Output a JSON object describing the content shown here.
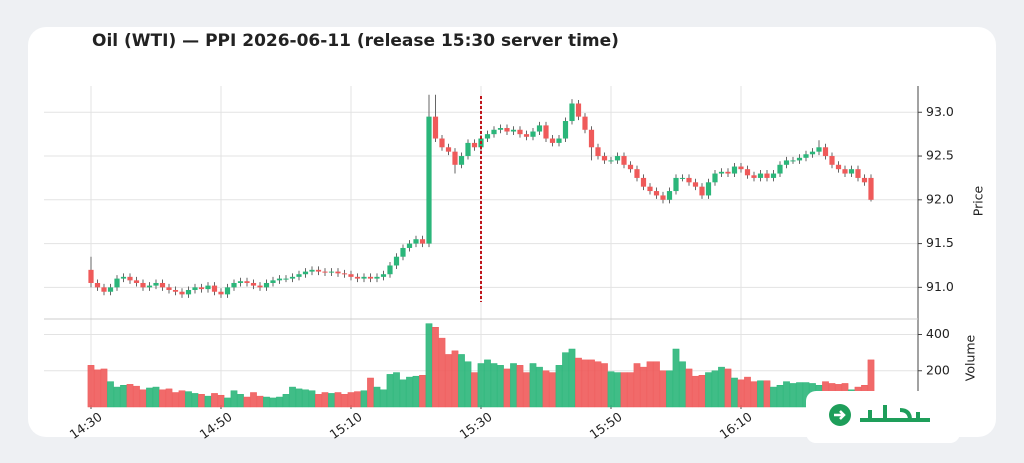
{
  "chart_data": {
    "type": "candlestick",
    "title": "Oil (WTI) — PPI 2026-06-11 (release 15:30 server time)",
    "x": [
      "14:30",
      "14:31",
      "14:32",
      "14:33",
      "14:34",
      "14:35",
      "14:36",
      "14:37",
      "14:38",
      "14:39",
      "14:40",
      "14:41",
      "14:42",
      "14:43",
      "14:44",
      "14:45",
      "14:46",
      "14:47",
      "14:48",
      "14:49",
      "14:50",
      "14:51",
      "14:52",
      "14:53",
      "14:54",
      "14:55",
      "14:56",
      "14:57",
      "14:58",
      "14:59",
      "15:00",
      "15:01",
      "15:02",
      "15:03",
      "15:04",
      "15:05",
      "15:06",
      "15:07",
      "15:08",
      "15:09",
      "15:10",
      "15:11",
      "15:12",
      "15:13",
      "15:14",
      "15:15",
      "15:16",
      "15:17",
      "15:18",
      "15:19",
      "15:20",
      "15:21",
      "15:22",
      "15:23",
      "15:24",
      "15:25",
      "15:26",
      "15:27",
      "15:28",
      "15:29",
      "15:30",
      "15:31",
      "15:32",
      "15:33",
      "15:34",
      "15:35",
      "15:36",
      "15:37",
      "15:38",
      "15:39",
      "15:40",
      "15:41",
      "15:42",
      "15:43",
      "15:44",
      "15:45",
      "15:46",
      "15:47",
      "15:48",
      "15:49",
      "15:50",
      "15:51",
      "15:52",
      "15:53",
      "15:54",
      "15:55",
      "15:56",
      "15:57",
      "15:58",
      "15:59",
      "16:00",
      "16:01",
      "16:02",
      "16:03",
      "16:04",
      "16:05",
      "16:06",
      "16:07",
      "16:08",
      "16:09",
      "16:10",
      "16:11",
      "16:12",
      "16:13",
      "16:14",
      "16:15",
      "16:16",
      "16:17",
      "16:18",
      "16:19",
      "16:20",
      "16:21",
      "16:22",
      "16:23",
      "16:24",
      "16:25",
      "16:26",
      "16:27",
      "16:28",
      "16:29",
      "16:30"
    ],
    "open": [
      91.2,
      91.05,
      91.0,
      90.95,
      91.0,
      91.1,
      91.12,
      91.08,
      91.05,
      91.0,
      91.02,
      91.05,
      91.0,
      90.97,
      90.95,
      90.92,
      90.97,
      91.0,
      90.98,
      91.02,
      90.95,
      90.92,
      91.0,
      91.05,
      91.07,
      91.05,
      91.02,
      91.0,
      91.05,
      91.08,
      91.1,
      91.1,
      91.12,
      91.15,
      91.18,
      91.2,
      91.18,
      91.17,
      91.18,
      91.16,
      91.15,
      91.12,
      91.1,
      91.12,
      91.1,
      91.12,
      91.15,
      91.25,
      91.35,
      91.45,
      91.5,
      91.55,
      91.5,
      92.95,
      92.7,
      92.6,
      92.55,
      92.4,
      92.5,
      92.65,
      92.6,
      92.7,
      92.75,
      92.8,
      92.82,
      92.78,
      92.8,
      92.75,
      92.72,
      92.78,
      92.85,
      92.7,
      92.65,
      92.7,
      92.9,
      93.1,
      92.95,
      92.8,
      92.6,
      92.5,
      92.45,
      92.45,
      92.5,
      92.4,
      92.35,
      92.25,
      92.15,
      92.1,
      92.05,
      92.0,
      92.1,
      92.25,
      92.25,
      92.2,
      92.15,
      92.05,
      92.2,
      92.3,
      92.32,
      92.3,
      92.38,
      92.35,
      92.28,
      92.25,
      92.3,
      92.25,
      92.3,
      92.4,
      92.45,
      92.45,
      92.48,
      92.52,
      92.55,
      92.6,
      92.5,
      92.4,
      92.35,
      92.3,
      92.35,
      92.25,
      92.25
    ],
    "high": [
      91.35,
      91.09,
      91.04,
      91.04,
      91.14,
      91.16,
      91.16,
      91.12,
      91.09,
      91.06,
      91.09,
      91.09,
      91.04,
      91.01,
      90.99,
      91.01,
      91.04,
      91.04,
      91.06,
      91.06,
      90.99,
      91.04,
      91.09,
      91.11,
      91.11,
      91.09,
      91.06,
      91.09,
      91.12,
      91.14,
      91.14,
      91.16,
      91.19,
      91.22,
      91.24,
      91.24,
      91.22,
      91.22,
      91.22,
      91.2,
      91.19,
      91.16,
      91.16,
      91.16,
      91.16,
      91.19,
      91.29,
      91.39,
      91.49,
      91.54,
      91.59,
      91.59,
      93.2,
      93.2,
      92.74,
      92.64,
      92.59,
      92.54,
      92.69,
      92.69,
      92.74,
      92.79,
      92.84,
      92.86,
      92.86,
      92.84,
      92.84,
      92.79,
      92.82,
      92.89,
      92.89,
      92.74,
      92.74,
      92.94,
      93.15,
      93.14,
      92.99,
      92.84,
      92.64,
      92.54,
      92.49,
      92.54,
      92.54,
      92.44,
      92.39,
      92.29,
      92.19,
      92.14,
      92.09,
      92.14,
      92.29,
      92.29,
      92.29,
      92.24,
      92.19,
      92.24,
      92.34,
      92.36,
      92.36,
      92.42,
      92.42,
      92.39,
      92.32,
      92.34,
      92.34,
      92.34,
      92.44,
      92.49,
      92.49,
      92.52,
      92.56,
      92.59,
      92.68,
      92.64,
      92.54,
      92.44,
      92.39,
      92.39,
      92.39,
      92.29,
      92.29
    ],
    "low": [
      91.0,
      90.96,
      90.91,
      90.91,
      90.96,
      91.06,
      91.04,
      91.01,
      90.96,
      90.96,
      90.98,
      90.96,
      90.93,
      90.91,
      90.88,
      90.88,
      90.93,
      90.94,
      90.94,
      90.91,
      90.88,
      90.88,
      90.96,
      91.01,
      91.01,
      90.98,
      90.96,
      90.96,
      91.01,
      91.04,
      91.06,
      91.06,
      91.08,
      91.11,
      91.14,
      91.14,
      91.13,
      91.13,
      91.12,
      91.11,
      91.08,
      91.06,
      91.06,
      91.06,
      91.06,
      91.08,
      91.11,
      91.21,
      91.31,
      91.41,
      91.46,
      91.46,
      91.46,
      92.66,
      92.56,
      92.51,
      92.3,
      92.36,
      92.46,
      92.56,
      92.56,
      92.66,
      92.71,
      92.76,
      92.74,
      92.74,
      92.71,
      92.68,
      92.68,
      92.74,
      92.66,
      92.61,
      92.61,
      92.66,
      92.86,
      92.91,
      92.76,
      92.45,
      92.46,
      92.41,
      92.41,
      92.41,
      92.36,
      92.31,
      92.21,
      92.11,
      92.06,
      92.01,
      91.96,
      91.96,
      92.06,
      92.21,
      92.16,
      92.11,
      92.01,
      92.01,
      92.16,
      92.26,
      92.26,
      92.26,
      92.31,
      92.24,
      92.21,
      92.21,
      92.21,
      92.21,
      92.26,
      92.36,
      92.41,
      92.41,
      92.44,
      92.48,
      92.51,
      92.46,
      92.36,
      92.31,
      92.26,
      92.26,
      92.21,
      92.16,
      91.98
    ],
    "close": [
      91.05,
      91.0,
      90.95,
      91.0,
      91.1,
      91.12,
      91.08,
      91.05,
      91.0,
      91.02,
      91.05,
      91.0,
      90.97,
      90.95,
      90.92,
      90.97,
      91.0,
      90.98,
      91.02,
      90.95,
      90.92,
      91.0,
      91.05,
      91.07,
      91.05,
      91.02,
      91.0,
      91.05,
      91.08,
      91.1,
      91.1,
      91.12,
      91.15,
      91.18,
      91.2,
      91.18,
      91.17,
      91.18,
      91.16,
      91.15,
      91.12,
      91.1,
      91.12,
      91.1,
      91.12,
      91.15,
      91.25,
      91.35,
      91.45,
      91.5,
      91.55,
      91.5,
      92.95,
      92.7,
      92.6,
      92.55,
      92.4,
      92.5,
      92.65,
      92.6,
      92.7,
      92.75,
      92.8,
      92.82,
      92.78,
      92.8,
      92.75,
      92.72,
      92.78,
      92.85,
      92.7,
      92.65,
      92.7,
      92.9,
      93.1,
      92.95,
      92.8,
      92.6,
      92.5,
      92.45,
      92.45,
      92.5,
      92.4,
      92.35,
      92.25,
      92.15,
      92.1,
      92.05,
      92.0,
      92.1,
      92.25,
      92.25,
      92.2,
      92.15,
      92.05,
      92.2,
      92.3,
      92.32,
      92.3,
      92.38,
      92.35,
      92.28,
      92.25,
      92.3,
      92.25,
      92.3,
      92.4,
      92.45,
      92.45,
      92.48,
      92.52,
      92.55,
      92.6,
      92.5,
      92.4,
      92.35,
      92.3,
      92.35,
      92.25,
      92.2,
      92.0
    ],
    "volume": [
      230,
      205,
      210,
      140,
      110,
      120,
      125,
      115,
      95,
      105,
      110,
      95,
      100,
      80,
      90,
      85,
      75,
      70,
      60,
      75,
      65,
      50,
      90,
      70,
      55,
      80,
      60,
      55,
      50,
      55,
      70,
      110,
      100,
      95,
      90,
      70,
      80,
      75,
      80,
      70,
      80,
      85,
      90,
      160,
      110,
      95,
      180,
      190,
      150,
      165,
      170,
      175,
      460,
      440,
      380,
      290,
      310,
      290,
      250,
      190,
      240,
      260,
      240,
      230,
      210,
      240,
      230,
      190,
      240,
      220,
      200,
      190,
      230,
      300,
      320,
      270,
      260,
      260,
      250,
      240,
      195,
      190,
      190,
      190,
      240,
      220,
      250,
      250,
      200,
      200,
      320,
      250,
      210,
      170,
      175,
      190,
      200,
      220,
      210,
      160,
      150,
      165,
      140,
      145,
      145,
      110,
      120,
      140,
      130,
      135,
      135,
      130,
      120,
      140,
      130,
      125,
      130,
      95,
      110,
      120,
      260
    ],
    "up_color": "#2bb67a",
    "down_color": "#ef5a5a",
    "event_time": "15:30",
    "event_color": "#c0161c",
    "xticks": [
      "14:30",
      "14:50",
      "15:10",
      "15:30",
      "15:50",
      "16:10"
    ],
    "ylabel": "Price",
    "ylim": [
      90.65,
      93.3
    ],
    "yticks": [
      {
        "value": 91,
        "label": "91.0"
      },
      {
        "value": 91.5,
        "label": "91.5"
      },
      {
        "value": 92,
        "label": "92.0"
      },
      {
        "value": 92.5,
        "label": "92.5"
      },
      {
        "value": 93,
        "label": "93.0"
      }
    ],
    "y2label": "Volume",
    "y2lim": [
      0,
      480
    ],
    "y2ticks": [
      200,
      400
    ],
    "grid": true
  }
}
